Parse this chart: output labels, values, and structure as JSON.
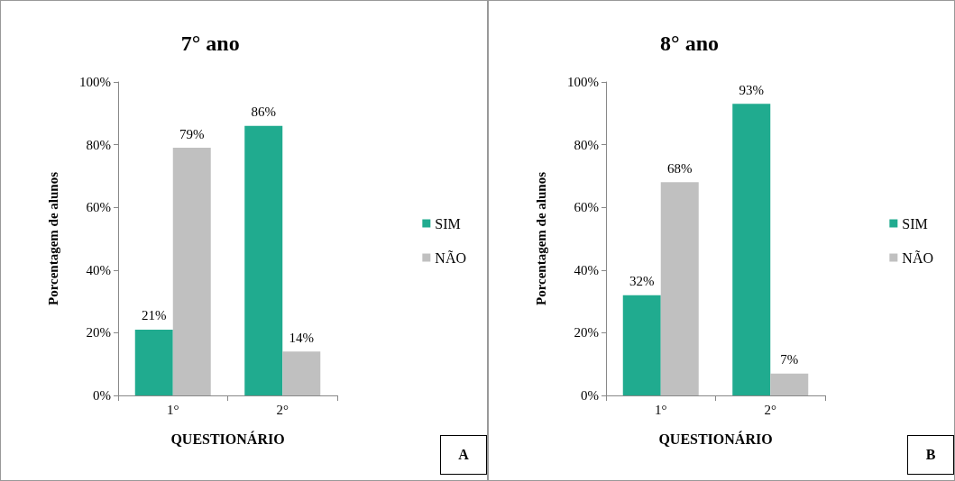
{
  "chart_data": [
    {
      "type": "bar",
      "title": "7° ano",
      "xlabel": "QUESTIONÁRIO",
      "ylabel": "Porcentagem de alunos",
      "categories": [
        "1°",
        "2°"
      ],
      "series": [
        {
          "name": "SIM",
          "color": "#20ab8f",
          "values": [
            21,
            86
          ],
          "value_labels": [
            "21%",
            "86%"
          ]
        },
        {
          "name": "NÃO",
          "color": "#c0c0c0",
          "values": [
            79,
            14
          ],
          "value_labels": [
            "79%",
            "14%"
          ]
        }
      ],
      "ylim": [
        0,
        100
      ],
      "yticks": [
        {
          "value": 0,
          "label": "0%"
        },
        {
          "value": 20,
          "label": "20%"
        },
        {
          "value": 40,
          "label": "40%"
        },
        {
          "value": 60,
          "label": "60%"
        },
        {
          "value": 80,
          "label": "80%"
        },
        {
          "value": 100,
          "label": "100%"
        }
      ],
      "grid": false,
      "legend": "right",
      "annotations": [
        "A"
      ]
    },
    {
      "type": "bar",
      "title": "8° ano",
      "xlabel": "QUESTIONÁRIO",
      "ylabel": "Porcentagem de alunos",
      "categories": [
        "1°",
        "2°"
      ],
      "series": [
        {
          "name": "SIM",
          "color": "#20ab8f",
          "values": [
            32,
            93
          ],
          "value_labels": [
            "32%",
            "93%"
          ]
        },
        {
          "name": "NÃO",
          "color": "#c0c0c0",
          "values": [
            68,
            7
          ],
          "value_labels": [
            "68%",
            "7%"
          ]
        }
      ],
      "ylim": [
        0,
        100
      ],
      "yticks": [
        {
          "value": 0,
          "label": "0%"
        },
        {
          "value": 20,
          "label": "20%"
        },
        {
          "value": 40,
          "label": "40%"
        },
        {
          "value": 60,
          "label": "60%"
        },
        {
          "value": 80,
          "label": "80%"
        },
        {
          "value": 100,
          "label": "100%"
        }
      ],
      "grid": false,
      "legend": "right",
      "annotations": [
        "B"
      ]
    }
  ]
}
